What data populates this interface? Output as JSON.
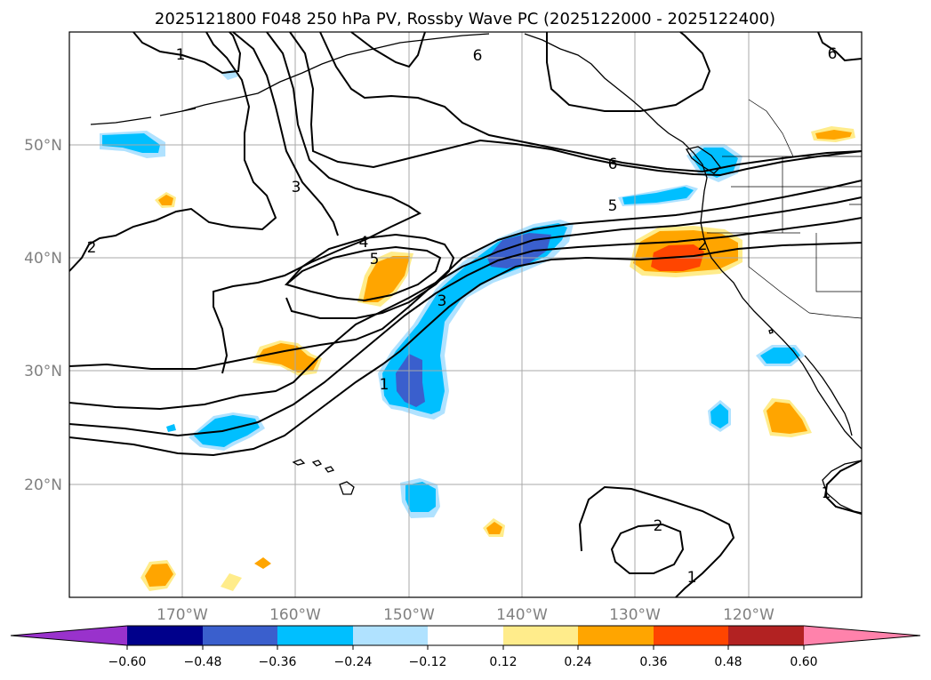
{
  "title": "2025121800 F048 250 hPa PV, Rossby Wave PC (2025122000 - 2025122400)",
  "lat_labels": [
    "50°N",
    "40°N",
    "30°N",
    "20°N"
  ],
  "lon_labels": [
    "170°W",
    "160°W",
    "150°W",
    "140°W",
    "130°W",
    "120°W"
  ],
  "contour_labels": [
    "1",
    "2",
    "3",
    "4",
    "5",
    "5",
    "6",
    "6",
    "6",
    "2",
    "3",
    "1",
    "2",
    "1",
    "1"
  ],
  "colorbar": {
    "ticks": [
      "−0.60",
      "−0.48",
      "−0.36",
      "−0.24",
      "−0.12",
      "0.12",
      "0.24",
      "0.36",
      "0.48",
      "0.60"
    ],
    "colors": [
      "#9932cc",
      "#00008b",
      "#3a5fcd",
      "#00bfff",
      "#b0e2ff",
      "#ffffff",
      "#ffec8b",
      "#ffa500",
      "#ff4500",
      "#b22222",
      "#ff82ab"
    ]
  }
}
